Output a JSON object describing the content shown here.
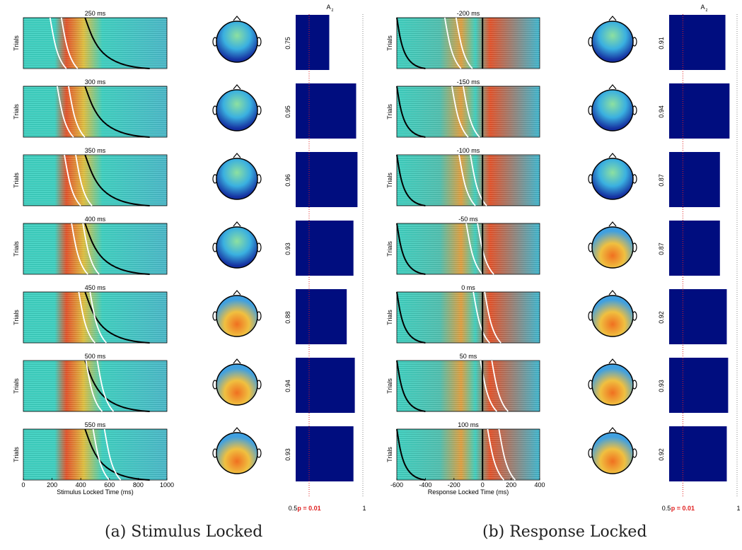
{
  "chart_data": [
    {
      "type": "heatmap",
      "panel": "a",
      "caption": "(a) Stimulus Locked",
      "ylabel": "Trials",
      "xlabel": "Stimulus Locked Time (ms)",
      "xlim": [
        0,
        1000
      ],
      "xticks": [
        "0",
        "200",
        "400",
        "600",
        "800",
        "1000"
      ],
      "windows": [
        {
          "label": "250 ms",
          "center": 250,
          "az": 0.75,
          "az_label": "0.75"
        },
        {
          "label": "300 ms",
          "center": 300,
          "az": 0.95,
          "az_label": "0.95"
        },
        {
          "label": "350 ms",
          "center": 350,
          "az": 0.96,
          "az_label": "0.96"
        },
        {
          "label": "400 ms",
          "center": 400,
          "az": 0.93,
          "az_label": "0.93"
        },
        {
          "label": "450 ms",
          "center": 450,
          "az": 0.88,
          "az_label": "0.88"
        },
        {
          "label": "500 ms",
          "center": 500,
          "az": 0.94,
          "az_label": "0.94"
        },
        {
          "label": "550 ms",
          "center": 550,
          "az": 0.93,
          "az_label": "0.93"
        }
      ],
      "rt_curve": {
        "start": 430,
        "end": 880
      },
      "az_axis": {
        "title": "A",
        "title_sub": "z",
        "xlim": [
          0.5,
          1
        ],
        "ticks": [
          "0.5",
          "1"
        ],
        "threshold": 0.6,
        "threshold_label": "p = 0.01"
      }
    },
    {
      "type": "heatmap",
      "panel": "b",
      "caption": "(b) Response Locked",
      "ylabel": "Trials",
      "xlabel": "Response Locked Time (ms)",
      "xlim": [
        -600,
        400
      ],
      "xticks": [
        "-600",
        "-400",
        "-200",
        "0",
        "200",
        "400"
      ],
      "windows": [
        {
          "label": "-200 ms",
          "center": -200,
          "az": 0.91,
          "az_label": "0.91"
        },
        {
          "label": "-150 ms",
          "center": -150,
          "az": 0.94,
          "az_label": "0.94"
        },
        {
          "label": "-100 ms",
          "center": -100,
          "az": 0.87,
          "az_label": "0.87"
        },
        {
          "label": "-50 ms",
          "center": -50,
          "az": 0.87,
          "az_label": "0.87"
        },
        {
          "label": "0 ms",
          "center": 0,
          "az": 0.92,
          "az_label": "0.92"
        },
        {
          "label": "50 ms",
          "center": 50,
          "az": 0.93,
          "az_label": "0.93"
        },
        {
          "label": "100 ms",
          "center": 100,
          "az": 0.92,
          "az_label": "0.92"
        }
      ],
      "rt_curve": {
        "start": -600,
        "end": -400
      },
      "response_time": 0,
      "az_axis": {
        "title": "A",
        "title_sub": "z",
        "xlim": [
          0.5,
          1
        ],
        "ticks": [
          "0.5",
          "1"
        ],
        "threshold": 0.6,
        "threshold_label": "p = 0.01"
      }
    }
  ],
  "colors": {
    "bar": "#000d7f",
    "threshold": "#e02020",
    "curve_rt": "#000000",
    "curve_window": "#ffffff",
    "heat_low": "#1c3fd0",
    "heat_mid": "#3ed0c0",
    "heat_high": "#e4532a"
  }
}
